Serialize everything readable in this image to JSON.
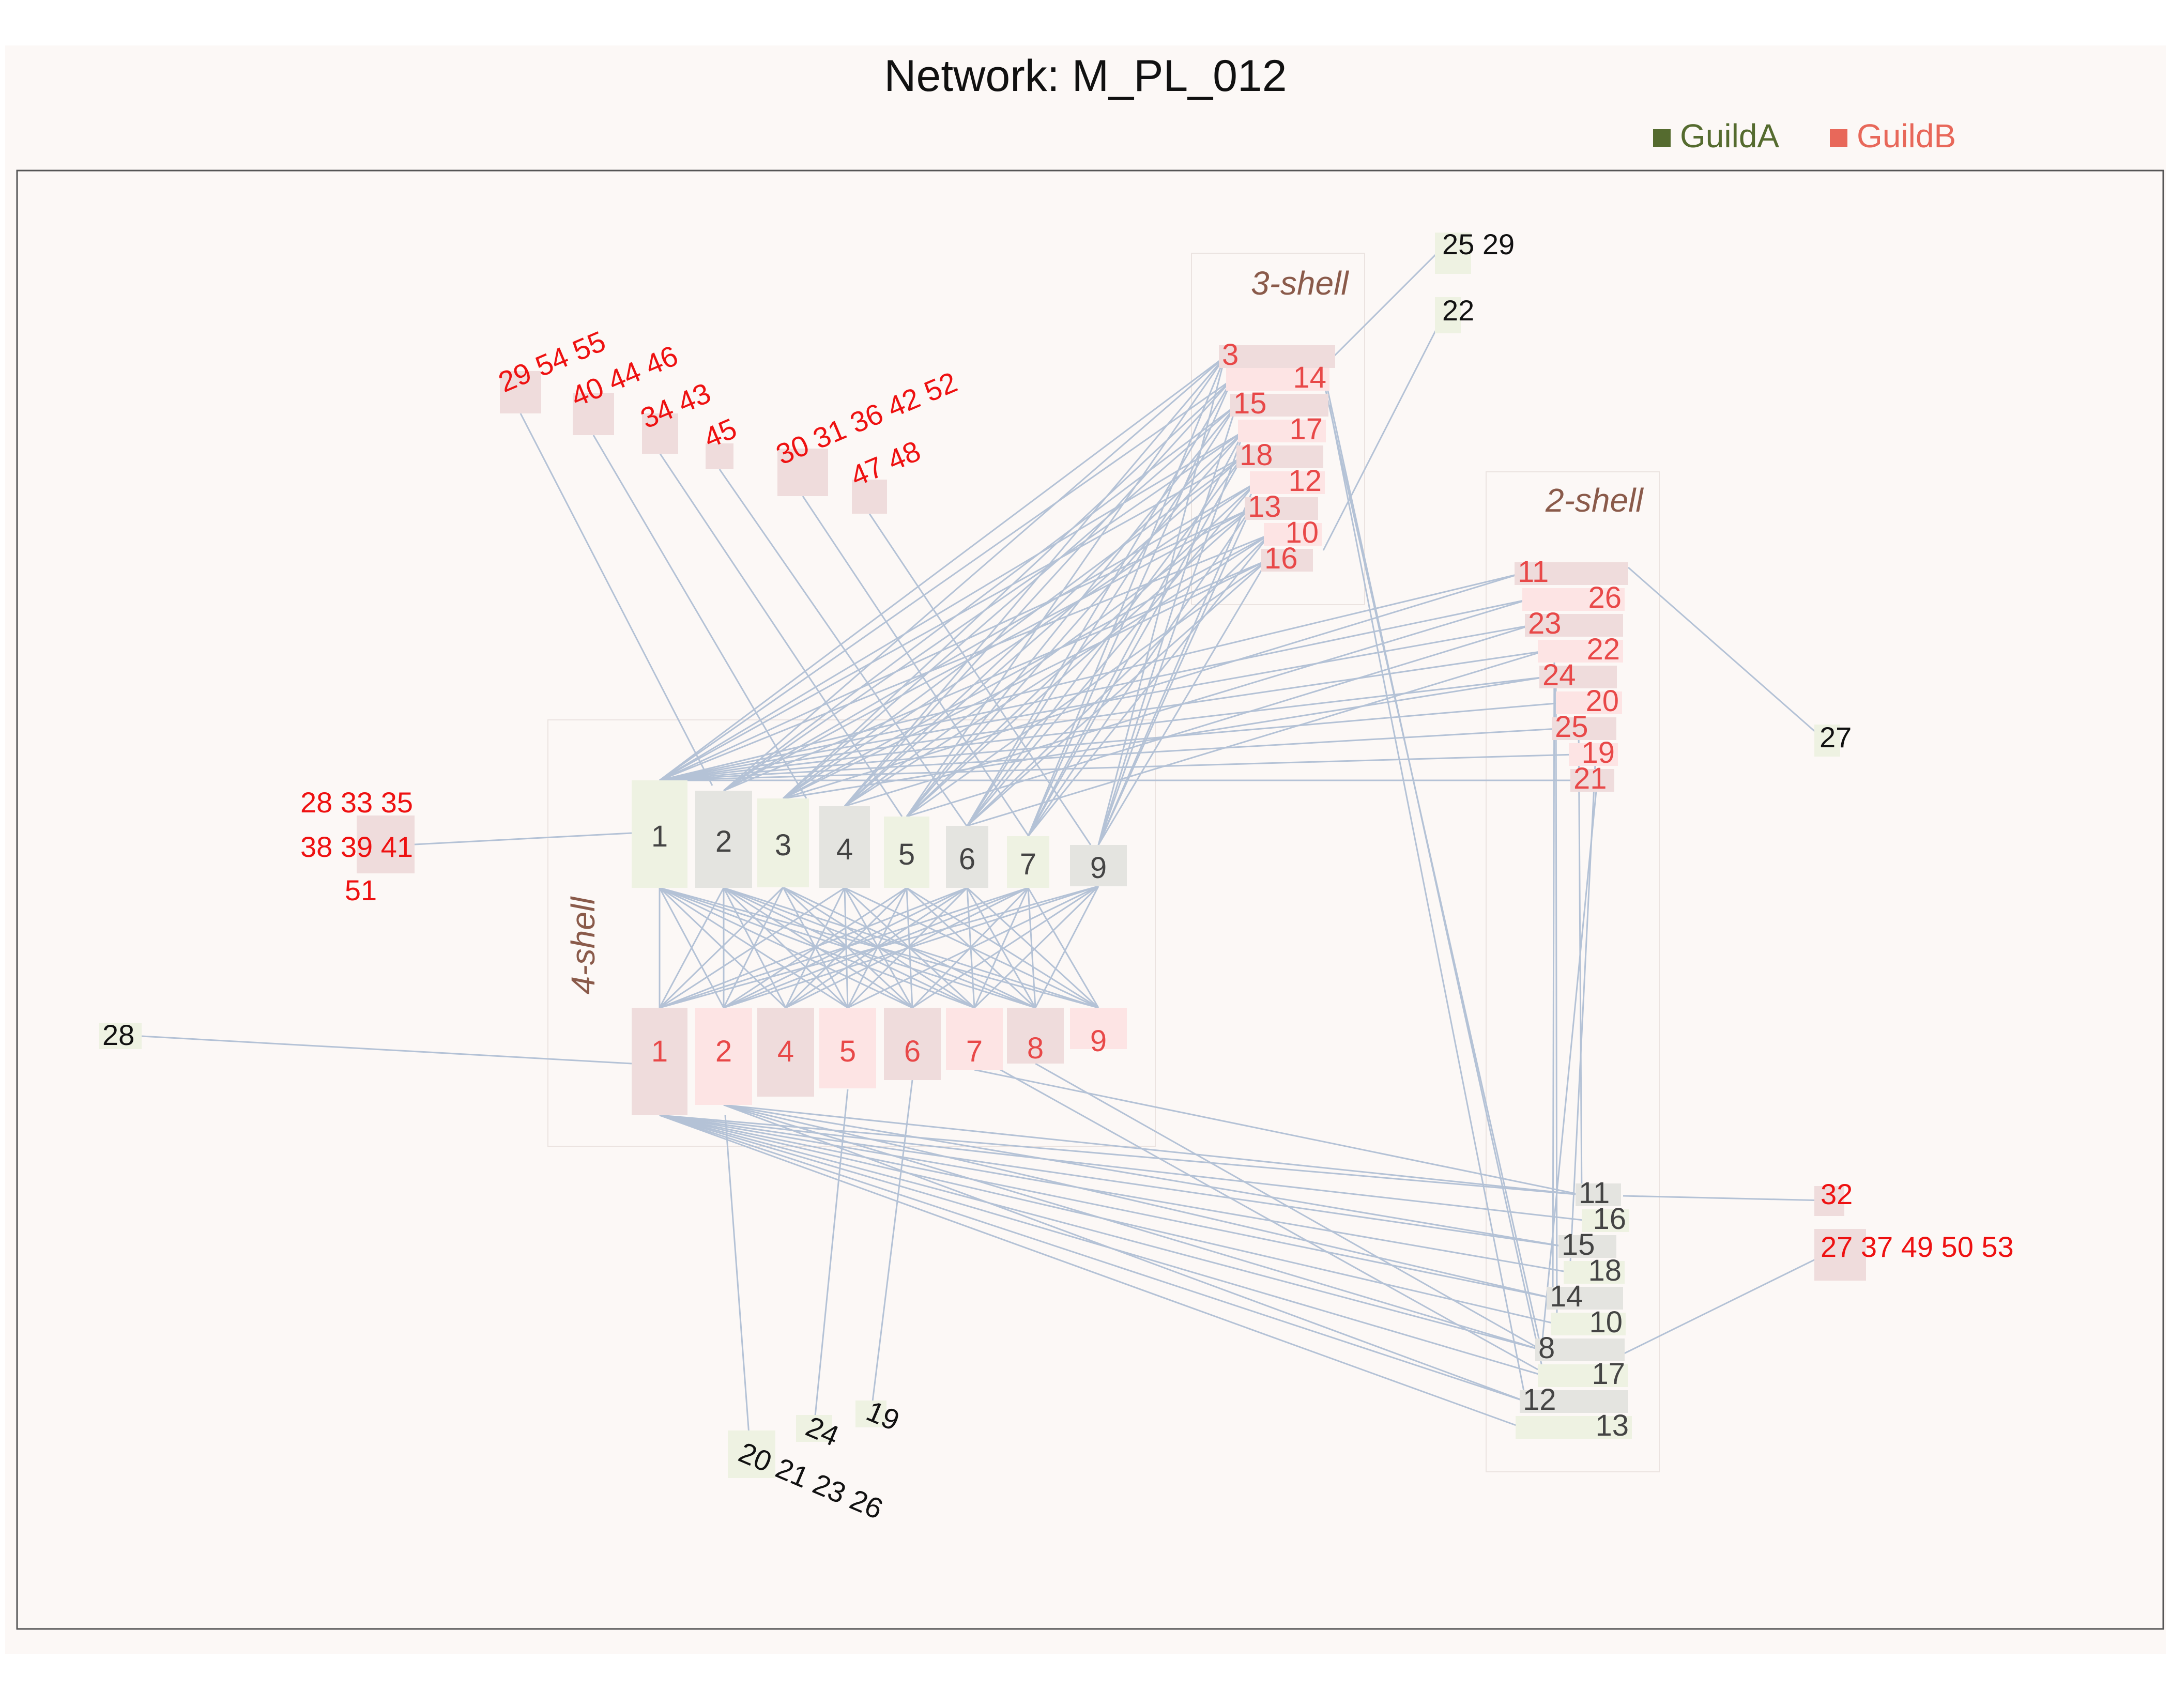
{
  "title": "Network: M_PL_012",
  "legend": [
    {
      "label": "GuildA",
      "color": "#556b2f"
    },
    {
      "label": "GuildB",
      "color": "#e8685a"
    }
  ],
  "colors": {
    "page_bg": "#fcf8f6",
    "link": "#b4c2d6",
    "guildA_fill_light": "#eef2e2",
    "guildA_fill_dark": "#e4e4e0",
    "guildB_fill_light": "#fde4e4",
    "guildB_fill_dark": "#efdcdc",
    "guildA_text": "#444444",
    "guildB_text": "#e84848",
    "peripheral_red": "#ee1111",
    "shell_label": "#8a5a4a"
  },
  "shells": {
    "k4": "4-shell",
    "k3": "3-shell",
    "k2": "2-shell"
  },
  "core4": {
    "guildA": [
      "1",
      "2",
      "3",
      "4",
      "5",
      "6",
      "7",
      "9"
    ],
    "guildB": [
      "1",
      "2",
      "4",
      "5",
      "6",
      "7",
      "8",
      "9"
    ]
  },
  "shell3_guildB": [
    "3",
    "14",
    "15",
    "17",
    "18",
    "12",
    "13",
    "10",
    "16"
  ],
  "shell2_guildB": [
    "11",
    "26",
    "23",
    "22",
    "24",
    "20",
    "25",
    "19",
    "21"
  ],
  "shell2_guildA": [
    "11",
    "16",
    "15",
    "18",
    "14",
    "10",
    "8",
    "17",
    "12",
    "13"
  ],
  "peripheral": {
    "top_red": [
      "29 54 55",
      "40 44 46",
      "34 43",
      "45",
      "30 31 36 42 52",
      "47 48"
    ],
    "left_red": [
      "28 33 35",
      "38 39 41",
      "51"
    ],
    "left_black": "28",
    "top_black": [
      "25 29",
      "22"
    ],
    "right_black": "27",
    "right_red": [
      "32",
      "27 37 49 50 53"
    ],
    "bottom_black": [
      "24",
      "19",
      "20 21 23 26"
    ]
  }
}
